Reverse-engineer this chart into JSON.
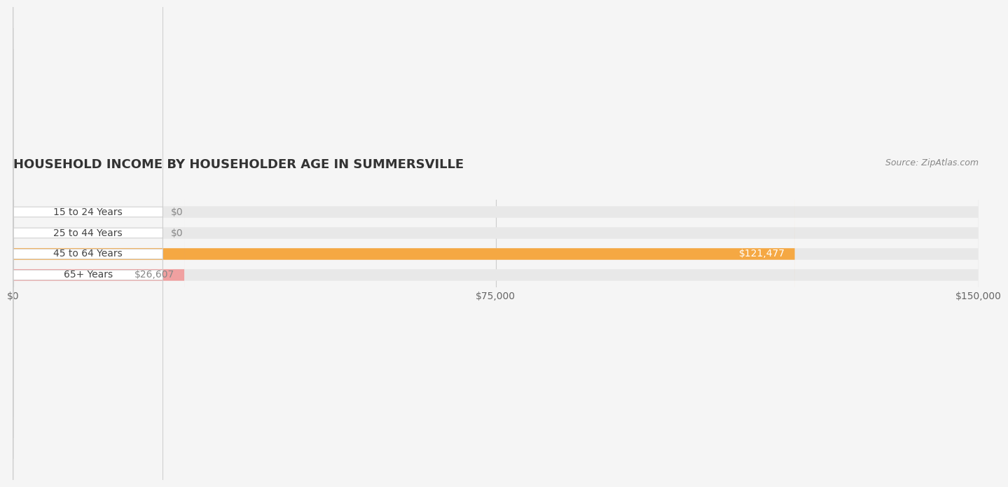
{
  "title": "HOUSEHOLD INCOME BY HOUSEHOLDER AGE IN SUMMERSVILLE",
  "source": "Source: ZipAtlas.com",
  "categories": [
    "15 to 24 Years",
    "25 to 44 Years",
    "45 to 64 Years",
    "65+ Years"
  ],
  "values": [
    0,
    0,
    121477,
    26607
  ],
  "bar_colors": [
    "#a8aed6",
    "#f0a0b8",
    "#f5a843",
    "#f0a0a0"
  ],
  "label_colors": [
    "#888888",
    "#888888",
    "#ffffff",
    "#888888"
  ],
  "value_labels": [
    "$0",
    "$0",
    "$121,477",
    "$26,607"
  ],
  "xlim": [
    0,
    150000
  ],
  "xticks": [
    0,
    75000,
    150000
  ],
  "xtick_labels": [
    "$0",
    "$75,000",
    "$150,000"
  ],
  "bg_color": "#f5f5f5",
  "bar_bg_color": "#e8e8e8",
  "title_fontsize": 13,
  "label_fontsize": 10,
  "source_fontsize": 9,
  "bar_height": 0.55
}
